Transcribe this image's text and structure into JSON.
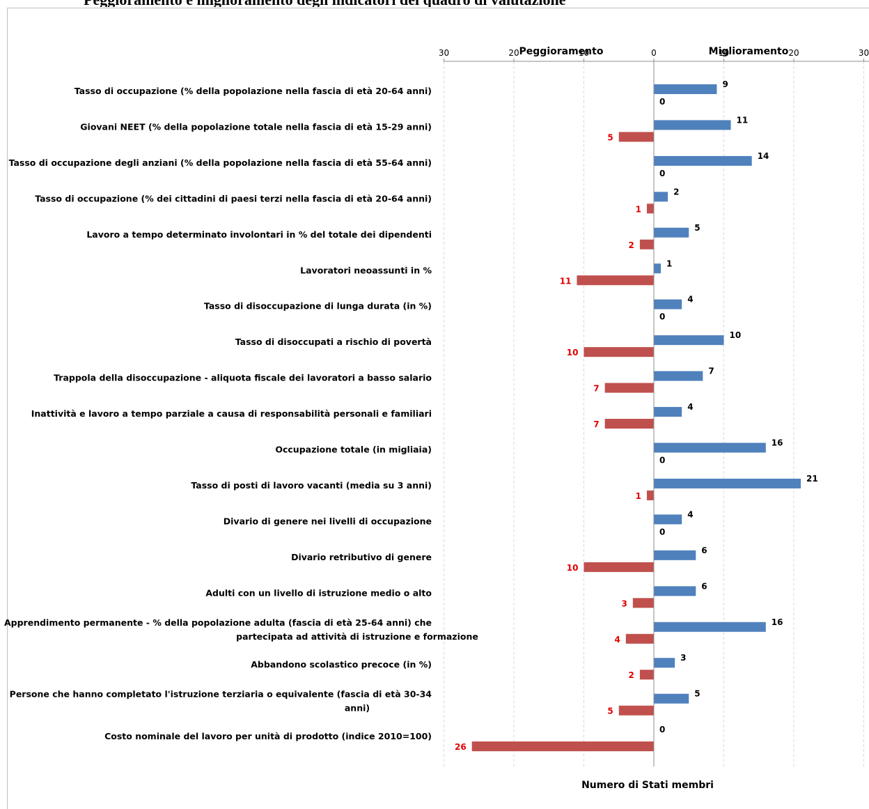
{
  "page": {
    "title": "Peggioramento e miglioramento degli indicatori del quadro di valutazione"
  },
  "chart_data": {
    "type": "bar",
    "orientation": "horizontal",
    "title": "",
    "xlabel": "Numero di Stati membri",
    "xlim": [
      -30,
      30
    ],
    "xticks": [
      -30,
      -20,
      -10,
      0,
      10,
      20,
      30
    ],
    "xtick_labels": [
      "30",
      "20",
      "10",
      "0",
      "10",
      "20",
      "30"
    ],
    "header_left": "Peggioramento",
    "header_right": "Miglioramento",
    "grid": "vertical dashed",
    "categories": [
      "Tasso di occupazione (% della popolazione nella fascia di età 20-64 anni)",
      "Giovani NEET (% della popolazione totale nella fascia di età 15-29 anni)",
      "Tasso di occupazione degli anziani (% della popolazione nella fascia di età 55-64 anni)",
      "Tasso di occupazione (% dei cittadini di paesi terzi nella fascia di età 20-64 anni)",
      "Lavoro a tempo determinato involontari in % del totale dei dipendenti",
      "Lavoratori neoassunti in %",
      "Tasso di disoccupazione di lunga durata (in %)",
      "Tasso di disoccupati a rischio di povertà",
      "Trappola della disoccupazione - aliquota fiscale dei lavoratori a basso salario",
      "Inattività e lavoro a tempo parziale a causa di responsabilità personali e familiari",
      "Occupazione totale (in migliaia)",
      "Tasso di posti di lavoro vacanti (media su 3 anni)",
      "Divario di genere nei livelli di occupazione",
      "Divario retributivo di genere",
      "Adulti con un livello di istruzione medio o alto",
      "Apprendimento permanente - % della popolazione adulta (fascia di età 25-64 anni) che partecipata ad attività di istruzione e formazione",
      "Abbandono scolastico precoce (in %)",
      "Persone che hanno completato l'istruzione terziaria o equivalente (fascia di età 30-34 anni)",
      "Costo nominale del lavoro per unità di prodotto (indice 2010=100)"
    ],
    "category_lines": [
      [
        "Tasso di occupazione (% della popolazione nella fascia di età 20-64 anni)"
      ],
      [
        "Giovani NEET (% della popolazione totale nella fascia di età 15-29 anni)"
      ],
      [
        "Tasso di occupazione degli anziani (% della popolazione nella fascia di età 55-64 anni)"
      ],
      [
        "Tasso di occupazione (% dei cittadini di paesi terzi nella fascia di età 20-64 anni)"
      ],
      [
        "Lavoro a tempo determinato involontari in % del totale dei dipendenti"
      ],
      [
        "Lavoratori neoassunti in %"
      ],
      [
        "Tasso di disoccupazione di lunga durata (in %)"
      ],
      [
        "Tasso di disoccupati a rischio di povertà"
      ],
      [
        "Trappola della disoccupazione - aliquota fiscale dei lavoratori a basso salario"
      ],
      [
        "Inattività e lavoro a tempo parziale a causa di responsabilità personali e familiari"
      ],
      [
        "Occupazione totale (in migliaia)"
      ],
      [
        "Tasso di posti di lavoro vacanti (media su 3 anni)"
      ],
      [
        "Divario di genere nei livelli di occupazione"
      ],
      [
        "Divario retributivo di genere"
      ],
      [
        "Adulti con un livello di istruzione medio o alto"
      ],
      [
        "Apprendimento permanente - % della popolazione adulta (fascia di età 25-64 anni) che",
        "partecipata ad attività di istruzione e formazione"
      ],
      [
        "Abbandono scolastico precoce (in %)"
      ],
      [
        "Persone che hanno completato l'istruzione terziaria o equivalente (fascia di età 30-34",
        "anni)"
      ],
      [
        "Costo nominale del lavoro per unità di prodotto (indice 2010=100)"
      ]
    ],
    "series": [
      {
        "key": "miglioramento",
        "color": "#4f81bd",
        "label_color": "#000000",
        "values": [
          9,
          11,
          14,
          2,
          5,
          1,
          4,
          10,
          7,
          4,
          16,
          21,
          4,
          6,
          6,
          16,
          3,
          5,
          0
        ]
      },
      {
        "key": "peggioramento",
        "color": "#c0504d",
        "label_color": "#e00000",
        "values": [
          0,
          5,
          0,
          1,
          2,
          11,
          0,
          10,
          7,
          7,
          0,
          1,
          0,
          10,
          3,
          4,
          2,
          5,
          26
        ]
      }
    ]
  }
}
